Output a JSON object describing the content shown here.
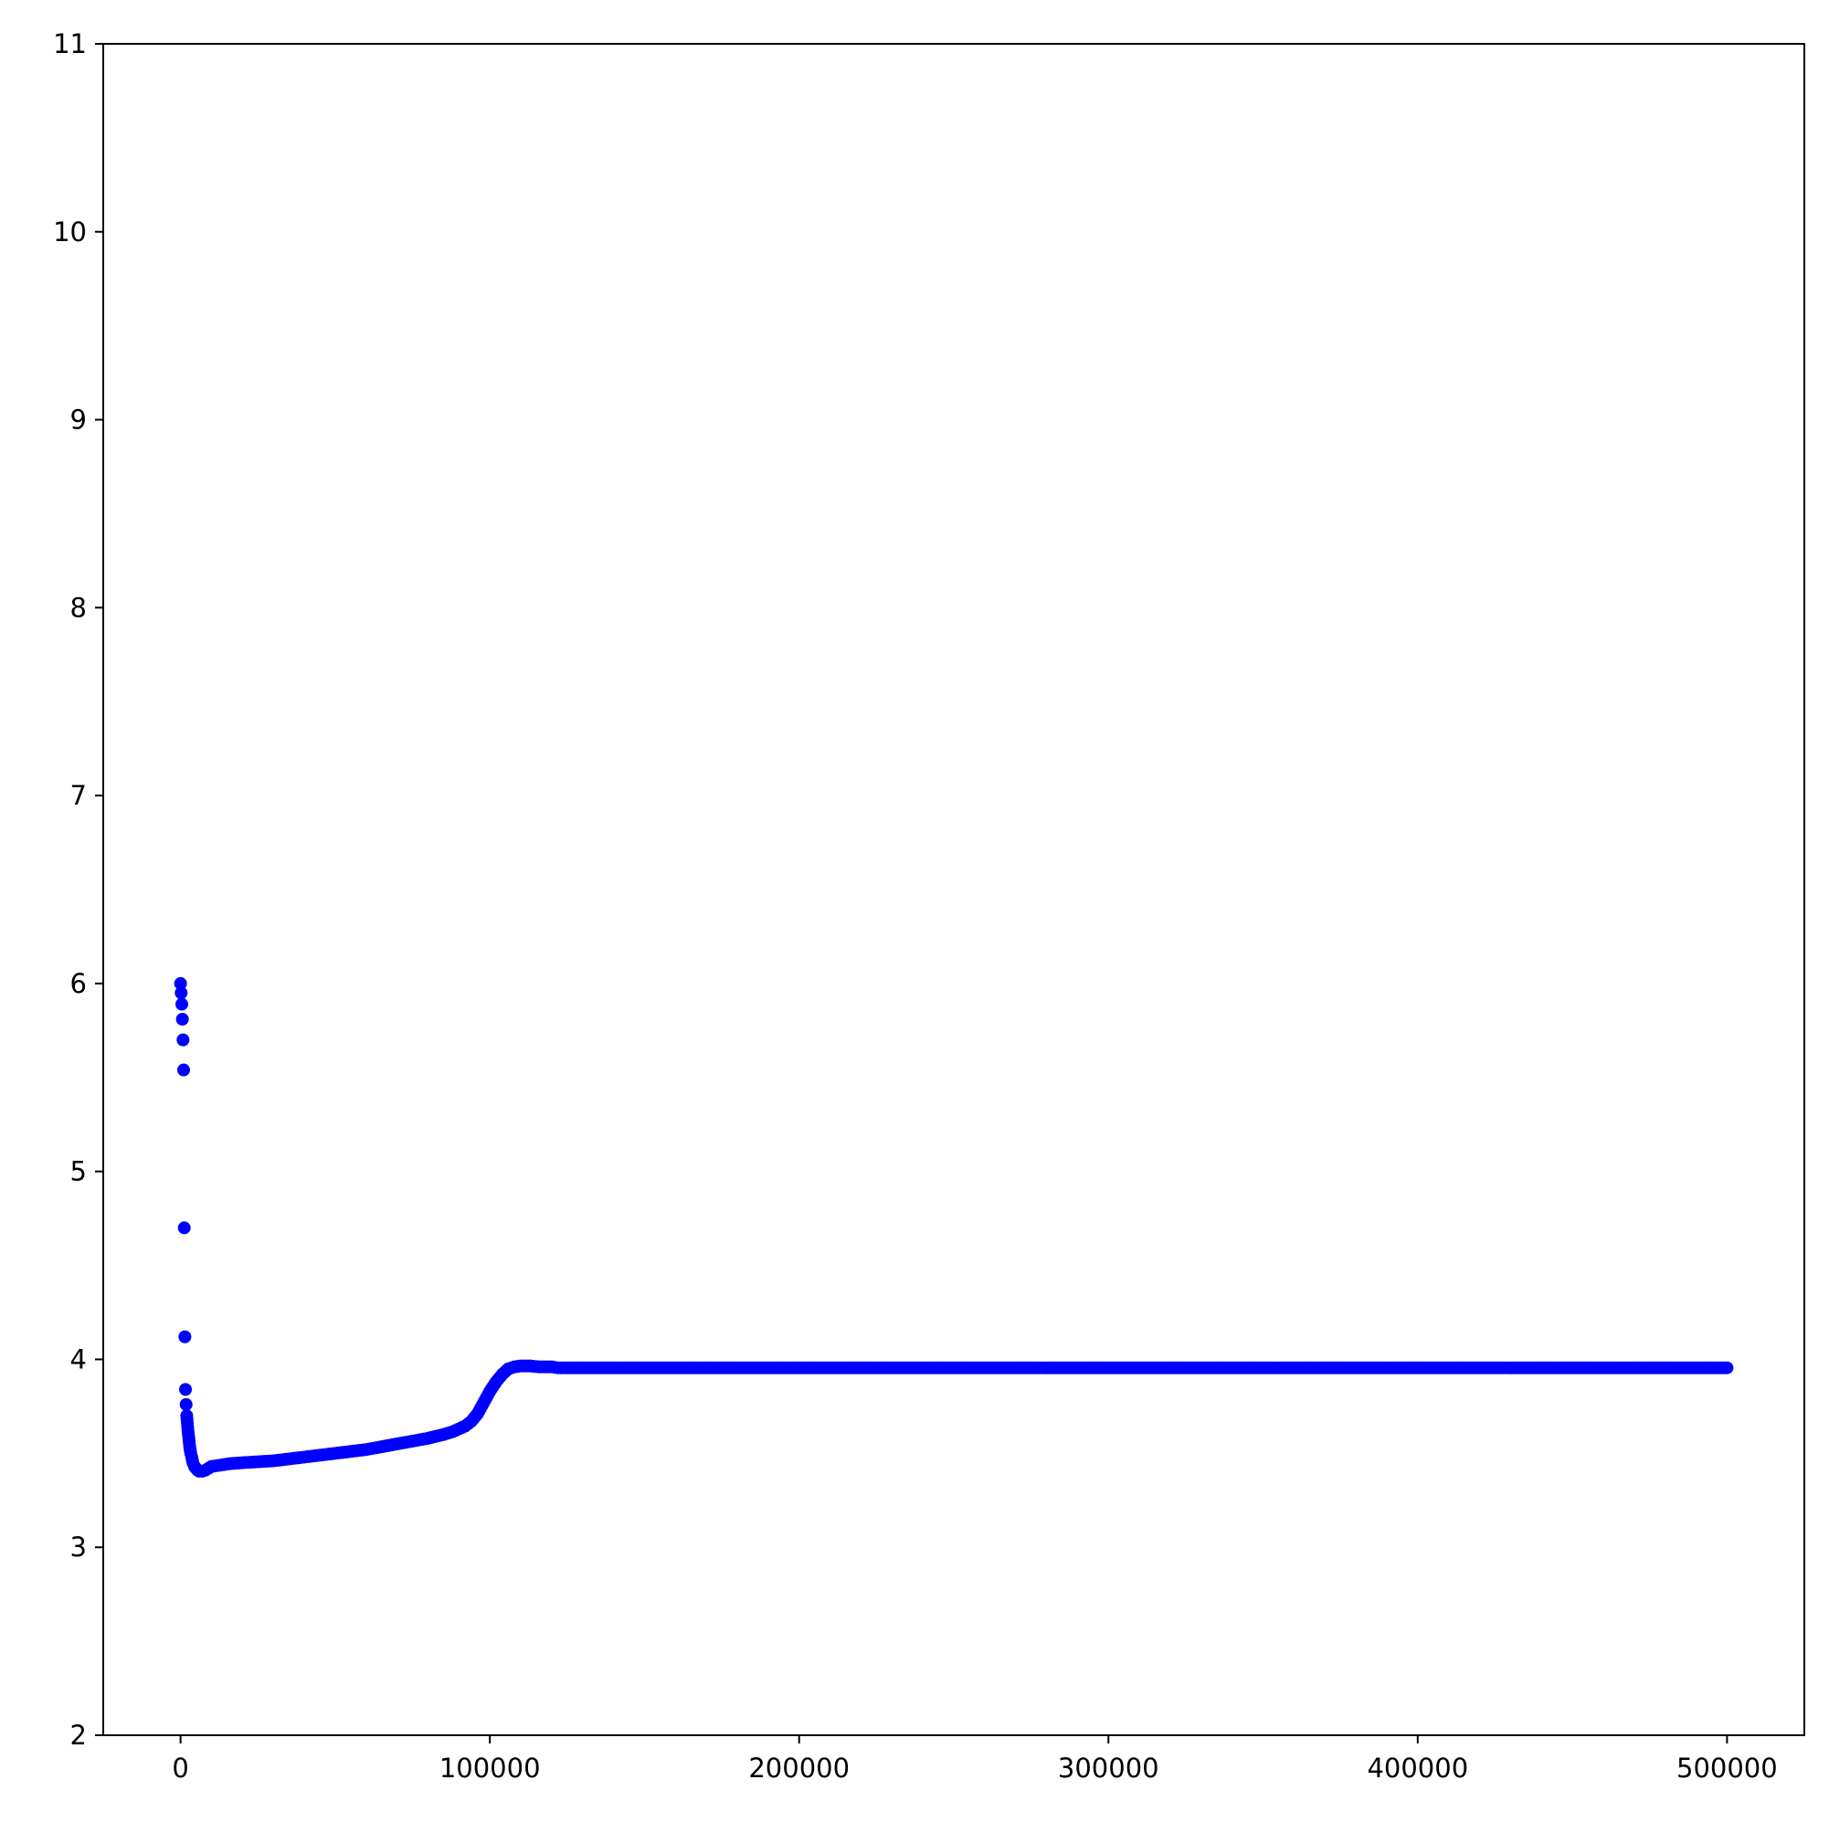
{
  "chart_data": {
    "type": "scatter",
    "title": "",
    "xlabel": "",
    "ylabel": "",
    "xlim": [
      -25000,
      525000
    ],
    "ylim": [
      2,
      11
    ],
    "x_ticks": [
      0,
      100000,
      200000,
      300000,
      400000,
      500000
    ],
    "x_tick_labels": [
      "0",
      "100000",
      "200000",
      "300000",
      "400000",
      "500000"
    ],
    "y_ticks": [
      2,
      3,
      4,
      5,
      6,
      7,
      8,
      9,
      10,
      11
    ],
    "y_tick_labels": [
      "2",
      "3",
      "4",
      "5",
      "6",
      "7",
      "8",
      "9",
      "10",
      "11"
    ],
    "grid": false,
    "legend": "none",
    "series": [
      {
        "color": "#0000ff",
        "marker": "dot",
        "points": [
          [
            0,
            6.0
          ],
          [
            200,
            5.95
          ],
          [
            400,
            5.89
          ],
          [
            600,
            5.81
          ],
          [
            800,
            5.7
          ],
          [
            1000,
            5.54
          ],
          [
            1200,
            4.7
          ],
          [
            1400,
            4.12
          ],
          [
            1600,
            3.84
          ],
          [
            1800,
            3.76
          ],
          [
            2000,
            3.7
          ],
          [
            2200,
            3.66
          ],
          [
            2400,
            3.62
          ],
          [
            2600,
            3.59
          ],
          [
            2800,
            3.56
          ],
          [
            3000,
            3.53
          ],
          [
            3300,
            3.5
          ],
          [
            3600,
            3.48
          ],
          [
            4000,
            3.45
          ],
          [
            4500,
            3.43
          ],
          [
            5000,
            3.42
          ],
          [
            5500,
            3.41
          ],
          [
            6000,
            3.405
          ],
          [
            7000,
            3.405
          ],
          [
            8000,
            3.41
          ],
          [
            9000,
            3.42
          ],
          [
            10000,
            3.43
          ],
          [
            12000,
            3.435
          ],
          [
            14000,
            3.44
          ],
          [
            16000,
            3.445
          ],
          [
            20000,
            3.45
          ],
          [
            25000,
            3.455
          ],
          [
            30000,
            3.46
          ],
          [
            35000,
            3.47
          ],
          [
            40000,
            3.48
          ],
          [
            45000,
            3.49
          ],
          [
            50000,
            3.5
          ],
          [
            55000,
            3.51
          ],
          [
            60000,
            3.52
          ],
          [
            65000,
            3.535
          ],
          [
            70000,
            3.55
          ],
          [
            75000,
            3.565
          ],
          [
            80000,
            3.58
          ],
          [
            85000,
            3.6
          ],
          [
            88000,
            3.615
          ],
          [
            90000,
            3.63
          ],
          [
            92000,
            3.645
          ],
          [
            94000,
            3.67
          ],
          [
            96000,
            3.71
          ],
          [
            98000,
            3.77
          ],
          [
            100000,
            3.83
          ],
          [
            102000,
            3.88
          ],
          [
            104000,
            3.92
          ],
          [
            106000,
            3.95
          ],
          [
            108000,
            3.96
          ],
          [
            110000,
            3.965
          ],
          [
            113000,
            3.965
          ],
          [
            116000,
            3.96
          ],
          [
            120000,
            3.96
          ],
          [
            122000,
            3.955
          ],
          [
            125000,
            3.955
          ],
          [
            150000,
            3.955
          ],
          [
            200000,
            3.955
          ],
          [
            250000,
            3.955
          ],
          [
            300000,
            3.955
          ],
          [
            350000,
            3.955
          ],
          [
            400000,
            3.955
          ],
          [
            450000,
            3.955
          ],
          [
            500000,
            3.955
          ]
        ]
      }
    ]
  }
}
